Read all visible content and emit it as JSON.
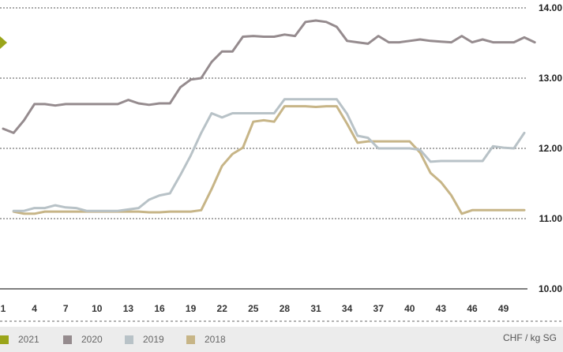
{
  "chart_data": {
    "type": "line",
    "title": "",
    "xlabel": "",
    "ylabel": "",
    "unit_label": "CHF / kg SG",
    "x_ticks": [
      "1",
      "4",
      "7",
      "10",
      "13",
      "16",
      "19",
      "22",
      "25",
      "28",
      "31",
      "34",
      "37",
      "40",
      "43",
      "46",
      "49"
    ],
    "y_ticks": [
      "14.00",
      "13.00",
      "12.00",
      "11.00",
      "10.00"
    ],
    "xlim": [
      1,
      52
    ],
    "ylim": [
      10,
      14
    ],
    "grid": true,
    "legend_position": "bottom",
    "series": [
      {
        "name": "2021",
        "color": "#9aa51a",
        "x": [
          1
        ],
        "y": [
          13.5
        ]
      },
      {
        "name": "2020",
        "color": "#958b8e",
        "x": [
          1,
          2,
          3,
          4,
          5,
          6,
          7,
          8,
          9,
          10,
          11,
          12,
          13,
          14,
          15,
          16,
          17,
          18,
          19,
          20,
          21,
          22,
          23,
          24,
          25,
          26,
          27,
          28,
          29,
          30,
          31,
          32,
          33,
          34,
          35,
          36,
          37,
          38,
          39,
          40,
          41,
          42,
          43,
          44,
          45,
          46,
          47,
          48,
          49,
          50,
          51,
          52
        ],
        "y": [
          12.28,
          12.22,
          12.4,
          12.63,
          12.63,
          12.61,
          12.63,
          12.63,
          12.63,
          12.63,
          12.63,
          12.63,
          12.69,
          12.64,
          12.62,
          12.64,
          12.64,
          12.87,
          12.98,
          13.0,
          13.23,
          13.38,
          13.38,
          13.59,
          13.6,
          13.59,
          13.59,
          13.62,
          13.6,
          13.8,
          13.82,
          13.8,
          13.73,
          13.53,
          13.51,
          13.49,
          13.6,
          13.51,
          13.51,
          13.53,
          13.55,
          13.53,
          13.52,
          13.51,
          13.6,
          13.51,
          13.55,
          13.51,
          13.51,
          13.51,
          13.58,
          13.51
        ]
      },
      {
        "name": "2019",
        "color": "#b8c2c7",
        "x": [
          2,
          3,
          4,
          5,
          6,
          7,
          8,
          9,
          10,
          11,
          12,
          13,
          14,
          15,
          16,
          17,
          18,
          19,
          20,
          21,
          22,
          23,
          24,
          25,
          26,
          27,
          28,
          29,
          30,
          31,
          32,
          33,
          34,
          35,
          36,
          37,
          38,
          39,
          40,
          41,
          42,
          43,
          44,
          45,
          46,
          47,
          48,
          49,
          50,
          51
        ],
        "y": [
          11.11,
          11.11,
          11.15,
          11.15,
          11.19,
          11.16,
          11.15,
          11.11,
          11.11,
          11.11,
          11.11,
          11.13,
          11.15,
          11.27,
          11.33,
          11.36,
          11.62,
          11.9,
          12.22,
          12.5,
          12.44,
          12.5,
          12.5,
          12.5,
          12.5,
          12.5,
          12.7,
          12.7,
          12.7,
          12.7,
          12.7,
          12.7,
          12.49,
          12.18,
          12.15,
          12.0,
          12.0,
          12.0,
          12.0,
          11.98,
          11.81,
          11.82,
          11.82,
          11.82,
          11.82,
          11.82,
          12.03,
          12.01,
          12.0,
          12.22
        ]
      },
      {
        "name": "2018",
        "color": "#c7b587",
        "x": [
          2,
          3,
          4,
          5,
          6,
          7,
          8,
          9,
          10,
          11,
          12,
          13,
          14,
          15,
          16,
          17,
          18,
          19,
          20,
          21,
          22,
          23,
          24,
          25,
          26,
          27,
          28,
          29,
          30,
          31,
          32,
          33,
          34,
          35,
          36,
          37,
          38,
          39,
          40,
          41,
          42,
          43,
          44,
          45,
          46,
          47,
          48,
          49,
          50,
          51
        ],
        "y": [
          11.1,
          11.07,
          11.07,
          11.1,
          11.1,
          11.1,
          11.1,
          11.1,
          11.1,
          11.1,
          11.1,
          11.1,
          11.1,
          11.09,
          11.09,
          11.1,
          11.1,
          11.1,
          11.12,
          11.42,
          11.75,
          11.92,
          12.01,
          12.38,
          12.4,
          12.38,
          12.6,
          12.6,
          12.6,
          12.59,
          12.6,
          12.6,
          12.35,
          12.08,
          12.1,
          12.1,
          12.1,
          12.1,
          12.1,
          11.94,
          11.65,
          11.52,
          11.33,
          11.07,
          11.12,
          11.12,
          11.12,
          11.12,
          11.12,
          11.12
        ]
      }
    ]
  }
}
